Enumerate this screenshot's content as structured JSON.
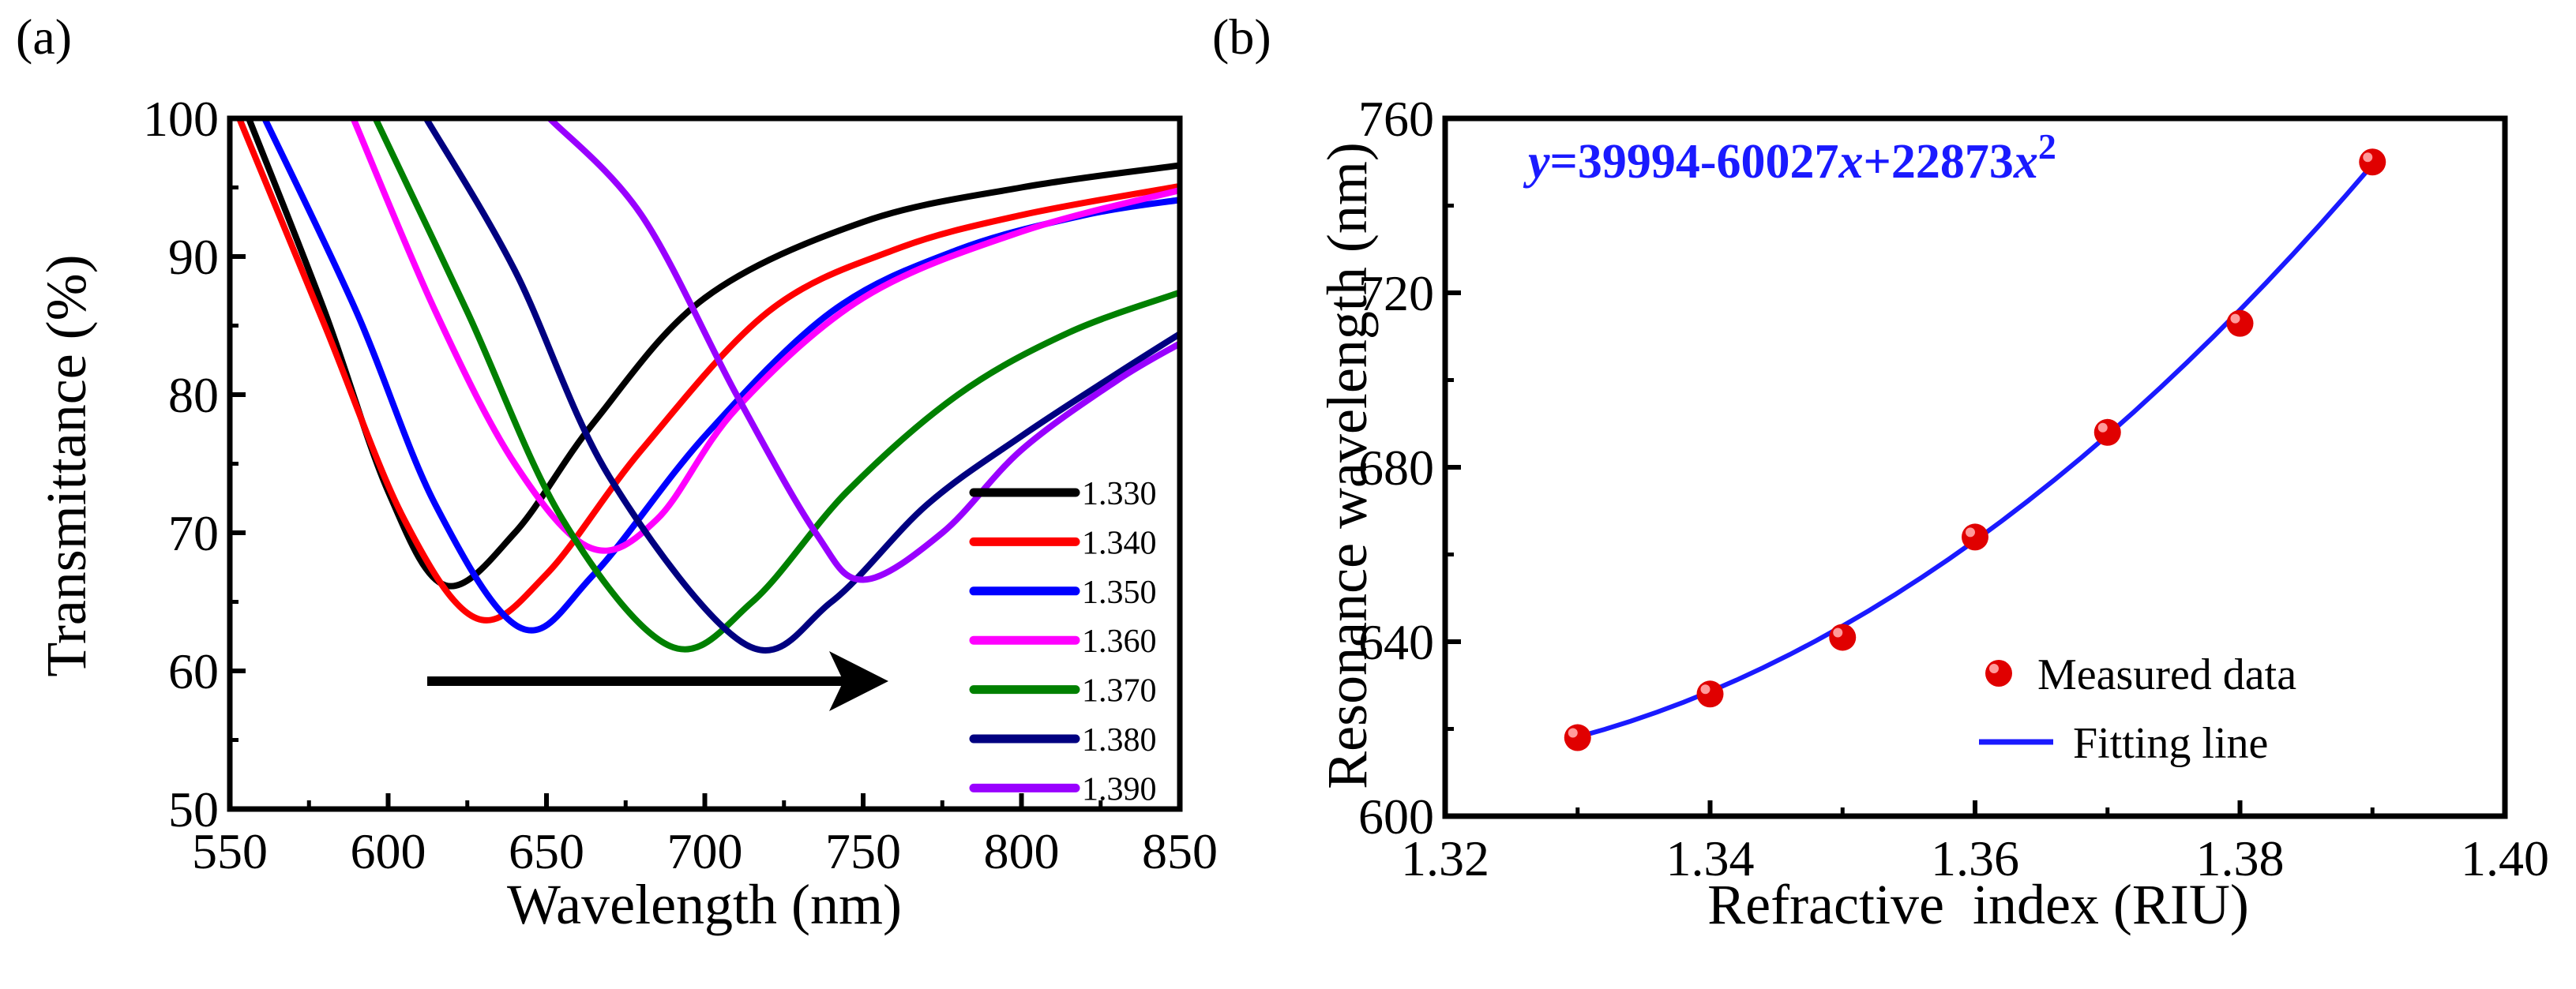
{
  "chart_data": [
    {
      "type": "line",
      "panel_label": "(a)",
      "xlabel": "Wavelength (nm)",
      "ylabel": "Transmittance (%)",
      "xlim": [
        550,
        850
      ],
      "ylim": [
        50,
        100
      ],
      "xticks": [
        550,
        600,
        650,
        700,
        750,
        800,
        850
      ],
      "yticks": [
        50,
        60,
        70,
        80,
        90,
        100
      ],
      "grid": false,
      "legend_position": "bottom-right",
      "annotation": "arrow pointing right (red shift)",
      "series": [
        {
          "name": "1.330",
          "color": "#000000",
          "points": [
            [
              556,
              100
            ],
            [
              580,
              86
            ],
            [
              600,
              73
            ],
            [
              618,
              66.2
            ],
            [
              640,
              70
            ],
            [
              665,
              78
            ],
            [
              700,
              87
            ],
            [
              750,
              92.5
            ],
            [
              800,
              95
            ],
            [
              850,
              96.6
            ]
          ]
        },
        {
          "name": "1.340",
          "color": "#ff0000",
          "points": [
            [
              553,
              100
            ],
            [
              580,
              85
            ],
            [
              605,
              71
            ],
            [
              628,
              63.8
            ],
            [
              650,
              67
            ],
            [
              680,
              76
            ],
            [
              720,
              86
            ],
            [
              760,
              90.5
            ],
            [
              800,
              93
            ],
            [
              850,
              95.1
            ]
          ]
        },
        {
          "name": "1.350",
          "color": "#0000ff",
          "points": [
            [
              561,
              100
            ],
            [
              590,
              86
            ],
            [
              615,
              72
            ],
            [
              642,
              63.1
            ],
            [
              665,
              67
            ],
            [
              700,
              77
            ],
            [
              740,
              86
            ],
            [
              780,
              90.5
            ],
            [
              820,
              93
            ],
            [
              850,
              94.1
            ]
          ]
        },
        {
          "name": "1.360",
          "color": "#ff00ff",
          "points": [
            [
              589,
              100
            ],
            [
              615,
              86
            ],
            [
              640,
              75
            ],
            [
              664,
              68.9
            ],
            [
              685,
              71
            ],
            [
              710,
              79
            ],
            [
              750,
              87
            ],
            [
              800,
              91.8
            ],
            [
              850,
              94.8
            ]
          ]
        },
        {
          "name": "1.370",
          "color": "#008000",
          "points": [
            [
              596,
              100
            ],
            [
              625,
              86
            ],
            [
              655,
              71
            ],
            [
              689,
              61.8
            ],
            [
              715,
              65
            ],
            [
              745,
              73
            ],
            [
              780,
              80
            ],
            [
              815,
              84.5
            ],
            [
              850,
              87.4
            ]
          ]
        },
        {
          "name": "1.380",
          "color": "#000080",
          "points": [
            [
              612,
              100
            ],
            [
              640,
              89
            ],
            [
              670,
              74
            ],
            [
              713,
              61.9
            ],
            [
              740,
              65
            ],
            [
              770,
              72
            ],
            [
              800,
              77
            ],
            [
              830,
              81.5
            ],
            [
              850,
              84.4
            ]
          ]
        },
        {
          "name": "1.390",
          "color": "#9900ff",
          "points": [
            [
              651,
              100
            ],
            [
              680,
              93
            ],
            [
              710,
              80
            ],
            [
              735,
              70
            ],
            [
              750,
              66.6
            ],
            [
              775,
              70
            ],
            [
              800,
              76
            ],
            [
              830,
              81
            ],
            [
              850,
              83.7
            ]
          ]
        }
      ]
    },
    {
      "type": "scatter",
      "panel_label": "(b)",
      "xlabel": "Refractive  index (RIU)",
      "ylabel": "Resonance wavelength (nm)",
      "xlim": [
        1.32,
        1.4
      ],
      "ylim": [
        600,
        760
      ],
      "xticks": [
        "1.32",
        "1.34",
        "1.36",
        "1.38",
        "1.40"
      ],
      "yticks": [
        600,
        640,
        680,
        720,
        760
      ],
      "grid": false,
      "legend_position": "bottom-right",
      "equation": {
        "y": "y",
        "part1": "=39994-60027",
        "x1": "x",
        "part2": "+22873",
        "x2": "x",
        "exp": "2"
      },
      "fit_coefficients": [
        39994,
        -60027,
        22873
      ],
      "series": [
        {
          "name": "Measured data",
          "color": "#ff0000",
          "x": [
            1.33,
            1.34,
            1.35,
            1.36,
            1.37,
            1.38,
            1.39
          ],
          "y": [
            618,
            628,
            641,
            664,
            688,
            713,
            750
          ]
        },
        {
          "name": "Fitting line",
          "color": "#1a1aff"
        }
      ]
    }
  ]
}
